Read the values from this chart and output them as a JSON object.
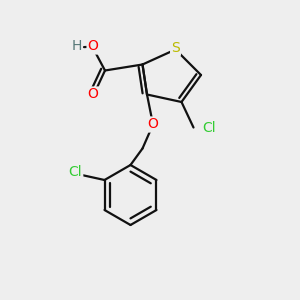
{
  "background_color": "#eeeeee",
  "S_color": "#bbbb00",
  "O_color": "#ff0000",
  "Cl_color": "#33cc33",
  "C_color": "#000000",
  "H_color": "#557777",
  "bond_color": "#111111",
  "bond_lw": 1.6,
  "figsize": [
    3.0,
    3.0
  ],
  "dpi": 100,
  "xlim": [
    0,
    10
  ],
  "ylim": [
    0,
    10
  ]
}
